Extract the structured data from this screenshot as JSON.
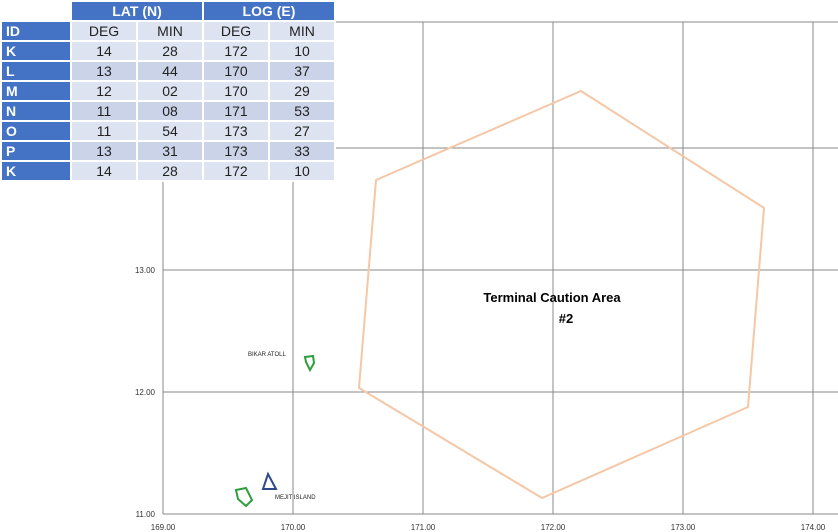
{
  "table": {
    "group_headers": [
      "LAT (N)",
      "LOG (E)"
    ],
    "sub_headers": [
      "ID",
      "DEG",
      "MIN",
      "DEG",
      "MIN"
    ],
    "rows": [
      {
        "id": "K",
        "lat_deg": "14",
        "lat_min": "28",
        "lon_deg": "172",
        "lon_min": "10"
      },
      {
        "id": "L",
        "lat_deg": "13",
        "lat_min": "44",
        "lon_deg": "170",
        "lon_min": "37"
      },
      {
        "id": "M",
        "lat_deg": "12",
        "lat_min": "02",
        "lon_deg": "170",
        "lon_min": "29"
      },
      {
        "id": "N",
        "lat_deg": "11",
        "lat_min": "08",
        "lon_deg": "171",
        "lon_min": "53"
      },
      {
        "id": "O",
        "lat_deg": "11",
        "lat_min": "54",
        "lon_deg": "173",
        "lon_min": "27"
      },
      {
        "id": "P",
        "lat_deg": "13",
        "lat_min": "31",
        "lon_deg": "173",
        "lon_min": "33"
      },
      {
        "id": "K",
        "lat_deg": "14",
        "lat_min": "28",
        "lon_deg": "172",
        "lon_min": "10"
      }
    ]
  },
  "map": {
    "x_ticks": [
      "169.00",
      "170.00",
      "171.00",
      "172.00",
      "173.00",
      "174.00"
    ],
    "y_ticks": [
      "13.00",
      "12.00",
      "11.00"
    ],
    "area_label_line1": "Terminal Caution Area",
    "area_label_line2": "#2",
    "area_color": "#f4c7a6",
    "grid_color": "#888888",
    "places": [
      {
        "name": "BIKAR ATOLL",
        "color": "#2e9e3e"
      },
      {
        "name": "MEJIT ISLAND",
        "color": "#2e4a8a"
      }
    ],
    "extra_island_color": "#2e9e3e"
  }
}
